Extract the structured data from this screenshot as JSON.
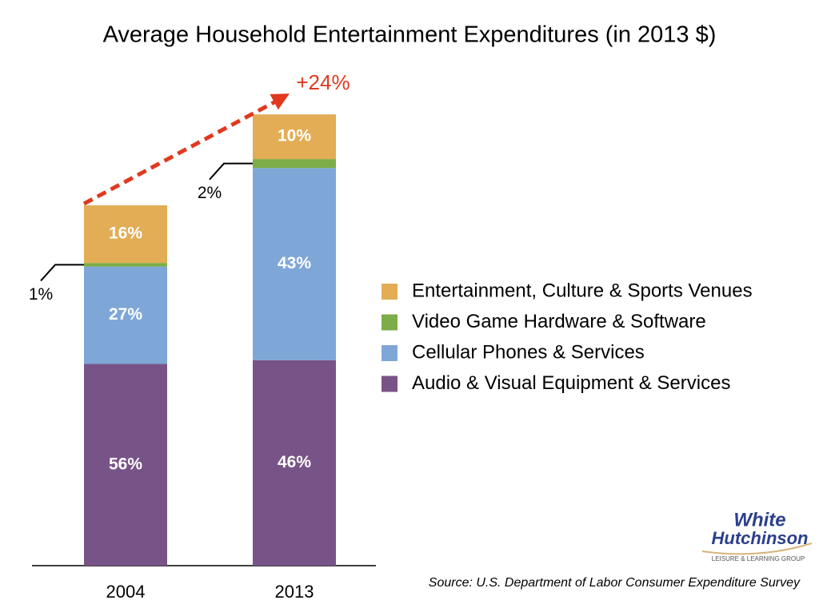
{
  "chart_data": {
    "type": "bar",
    "stacked": true,
    "title": "Average Household Entertainment Expenditures (in 2013 $)",
    "categories": [
      "2004",
      "2013"
    ],
    "series": [
      {
        "name": "Audio & Visual Equipment & Services",
        "color": "#785387",
        "values": [
          56,
          46
        ],
        "value_labels": [
          "56%",
          "46%"
        ]
      },
      {
        "name": "Cellular Phones & Services",
        "color": "#7ea7d8",
        "values": [
          27,
          43
        ],
        "value_labels": [
          "27%",
          "43%"
        ]
      },
      {
        "name": "Video Game Hardware & Software",
        "color": "#7cad48",
        "values": [
          1,
          2
        ],
        "value_labels": [
          "1%",
          "2%"
        ]
      },
      {
        "name": "Entertainment, Culture & Sports Venues",
        "color": "#e2ad55",
        "values": [
          16,
          10
        ],
        "value_labels": [
          "16%",
          "10%"
        ]
      }
    ],
    "growth": {
      "value": 24,
      "label": "+24%"
    },
    "source": "Source: U.S. Department of Labor Consumer Expenditure Survey"
  },
  "logo": {
    "line1": "White",
    "line2": "Hutchinson",
    "tagline": "LEISURE & LEARNING GROUP"
  }
}
